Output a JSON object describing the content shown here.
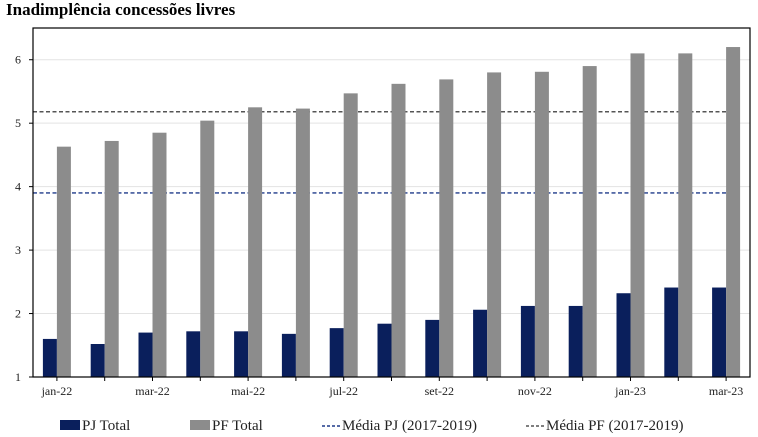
{
  "title": "Inadimplência concessões livres",
  "chart_data": {
    "type": "bar",
    "categories": [
      "jan-22",
      "fev-22",
      "mar-22",
      "abr-22",
      "mai-22",
      "jun-22",
      "jul-22",
      "ago-22",
      "set-22",
      "out-22",
      "nov-22",
      "dez-22",
      "jan-23",
      "fev-23",
      "mar-23"
    ],
    "x_tick_labels": [
      "jan-22",
      "mar-22",
      "mai-22",
      "jul-22",
      "set-22",
      "nov-22",
      "jan-23",
      "mar-23"
    ],
    "series": [
      {
        "name": "PJ Total",
        "color": "#0a1f5c",
        "values": [
          1.6,
          1.52,
          1.7,
          1.72,
          1.72,
          1.68,
          1.77,
          1.84,
          1.9,
          2.06,
          2.12,
          2.12,
          2.32,
          2.41,
          2.41
        ]
      },
      {
        "name": "PF Total",
        "color": "#8c8c8c",
        "values": [
          4.63,
          4.72,
          4.85,
          5.04,
          5.25,
          5.23,
          5.47,
          5.62,
          5.69,
          5.8,
          5.81,
          5.9,
          6.1,
          6.1,
          6.2
        ]
      }
    ],
    "reference_lines": [
      {
        "name": "Média PJ (2017-2019)",
        "value": 3.9,
        "color": "#1f3a8a",
        "style": "dashed"
      },
      {
        "name": "Média PF (2017-2019)",
        "value": 5.18,
        "color": "#555555",
        "style": "dashed"
      }
    ],
    "ylim": [
      1,
      6.5
    ],
    "yticks": [
      1,
      2,
      3,
      4,
      5,
      6
    ],
    "xlabel": "",
    "ylabel": "",
    "grid": "horizontal",
    "legend": "bottom"
  }
}
